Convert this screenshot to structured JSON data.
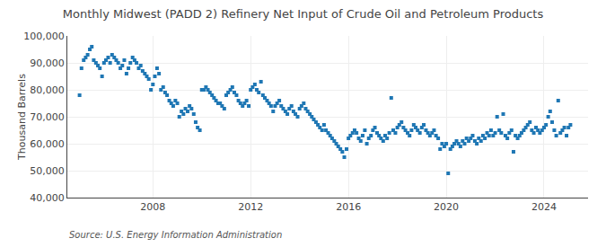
{
  "chart_data": {
    "type": "scatter",
    "title": "Monthly Midwest (PADD 2) Refinery Net Input of Crude Oil and Petroleum Products",
    "ylabel": "Thousand Barrels",
    "annotations": [
      "Source: U.S. Energy Information Administration"
    ],
    "marker": "square",
    "grid": true,
    "xlim": [
      2004.5,
      2025.8
    ],
    "xticks": [
      2008,
      2012,
      2016,
      2020,
      2024
    ],
    "ylim": [
      40000,
      100000
    ],
    "yticks": [
      {
        "value": 40000,
        "label": "40,000"
      },
      {
        "value": 50000,
        "label": "50,000"
      },
      {
        "value": 60000,
        "label": "60,000"
      },
      {
        "value": 70000,
        "label": "70,000"
      },
      {
        "value": 80000,
        "label": "80,000"
      },
      {
        "value": 90000,
        "label": "90,000"
      },
      {
        "value": 100000,
        "label": "100,000"
      }
    ],
    "x": [
      2005.0,
      2005.08,
      2005.17,
      2005.25,
      2005.33,
      2005.42,
      2005.5,
      2005.58,
      2005.67,
      2005.75,
      2005.83,
      2005.92,
      2006.0,
      2006.08,
      2006.17,
      2006.25,
      2006.33,
      2006.42,
      2006.5,
      2006.58,
      2006.67,
      2006.75,
      2006.83,
      2006.92,
      2007.0,
      2007.08,
      2007.17,
      2007.25,
      2007.33,
      2007.42,
      2007.5,
      2007.58,
      2007.67,
      2007.75,
      2007.83,
      2007.92,
      2008.0,
      2008.08,
      2008.17,
      2008.25,
      2008.33,
      2008.42,
      2008.5,
      2008.58,
      2008.67,
      2008.75,
      2008.83,
      2008.92,
      2009.0,
      2009.08,
      2009.17,
      2009.25,
      2009.33,
      2009.42,
      2009.5,
      2009.58,
      2009.67,
      2009.75,
      2009.83,
      2009.92,
      2010.0,
      2010.08,
      2010.17,
      2010.25,
      2010.33,
      2010.42,
      2010.5,
      2010.58,
      2010.67,
      2010.75,
      2010.83,
      2010.92,
      2011.0,
      2011.08,
      2011.17,
      2011.25,
      2011.33,
      2011.42,
      2011.5,
      2011.58,
      2011.67,
      2011.75,
      2011.83,
      2011.92,
      2012.0,
      2012.08,
      2012.17,
      2012.25,
      2012.33,
      2012.42,
      2012.5,
      2012.58,
      2012.67,
      2012.75,
      2012.83,
      2012.92,
      2013.0,
      2013.08,
      2013.17,
      2013.25,
      2013.33,
      2013.42,
      2013.5,
      2013.58,
      2013.67,
      2013.75,
      2013.83,
      2013.92,
      2014.0,
      2014.08,
      2014.17,
      2014.25,
      2014.33,
      2014.42,
      2014.5,
      2014.58,
      2014.67,
      2014.75,
      2014.83,
      2014.92,
      2015.0,
      2015.08,
      2015.17,
      2015.25,
      2015.33,
      2015.42,
      2015.5,
      2015.58,
      2015.67,
      2015.75,
      2015.83,
      2015.92,
      2016.0,
      2016.08,
      2016.17,
      2016.25,
      2016.33,
      2016.42,
      2016.5,
      2016.58,
      2016.67,
      2016.75,
      2016.83,
      2016.92,
      2017.0,
      2017.08,
      2017.17,
      2017.25,
      2017.33,
      2017.42,
      2017.5,
      2017.58,
      2017.67,
      2017.75,
      2017.83,
      2017.92,
      2018.0,
      2018.08,
      2018.17,
      2018.25,
      2018.33,
      2018.42,
      2018.5,
      2018.58,
      2018.67,
      2018.75,
      2018.83,
      2018.92,
      2019.0,
      2019.08,
      2019.17,
      2019.25,
      2019.33,
      2019.42,
      2019.5,
      2019.58,
      2019.67,
      2019.75,
      2019.83,
      2019.92,
      2020.0,
      2020.08,
      2020.17,
      2020.25,
      2020.33,
      2020.42,
      2020.5,
      2020.58,
      2020.67,
      2020.75,
      2020.83,
      2020.92,
      2021.0,
      2021.08,
      2021.17,
      2021.25,
      2021.33,
      2021.42,
      2021.5,
      2021.58,
      2021.67,
      2021.75,
      2021.83,
      2021.92,
      2022.0,
      2022.08,
      2022.17,
      2022.25,
      2022.33,
      2022.42,
      2022.5,
      2022.58,
      2022.67,
      2022.75,
      2022.83,
      2022.92,
      2023.0,
      2023.08,
      2023.17,
      2023.25,
      2023.33,
      2023.42,
      2023.5,
      2023.58,
      2023.67,
      2023.75,
      2023.83,
      2023.92,
      2024.0,
      2024.08,
      2024.17,
      2024.25,
      2024.33,
      2024.42,
      2024.5,
      2024.58,
      2024.67,
      2024.75,
      2024.83,
      2024.92,
      2025.0,
      2025.08
    ],
    "values": [
      78000,
      88000,
      91000,
      92000,
      93000,
      95000,
      96000,
      91000,
      90000,
      89000,
      88000,
      85000,
      90000,
      91000,
      92000,
      90000,
      93000,
      92000,
      91000,
      90000,
      88000,
      89000,
      91000,
      86000,
      88000,
      90000,
      92000,
      91000,
      90000,
      88000,
      89000,
      87000,
      86000,
      85000,
      84000,
      80000,
      82000,
      85000,
      88000,
      86000,
      80000,
      81000,
      79000,
      78000,
      76000,
      75000,
      74000,
      76000,
      75000,
      70000,
      72000,
      71000,
      73000,
      72000,
      74000,
      73000,
      71000,
      68000,
      66000,
      65000,
      80000,
      80000,
      81000,
      80000,
      79000,
      78000,
      77000,
      76000,
      75000,
      75000,
      74000,
      73000,
      78000,
      79000,
      80000,
      81000,
      79000,
      78000,
      76000,
      75000,
      74000,
      75000,
      76000,
      74000,
      80000,
      81000,
      82000,
      80000,
      79000,
      83000,
      78000,
      77000,
      76000,
      75000,
      74000,
      72000,
      74000,
      75000,
      76000,
      74000,
      73000,
      72000,
      71000,
      73000,
      74000,
      72000,
      71000,
      70000,
      73000,
      74000,
      75000,
      73000,
      72000,
      71000,
      70000,
      69000,
      68000,
      67000,
      66000,
      65000,
      67000,
      65000,
      64000,
      63000,
      62000,
      61000,
      60000,
      59000,
      58000,
      57000,
      55000,
      58000,
      62000,
      63000,
      64000,
      65000,
      64000,
      62000,
      61000,
      63000,
      65000,
      60000,
      62000,
      63000,
      65000,
      66000,
      64000,
      63000,
      62000,
      61000,
      63000,
      62000,
      64000,
      77000,
      65000,
      64000,
      66000,
      67000,
      68000,
      66000,
      65000,
      64000,
      63000,
      65000,
      67000,
      66000,
      65000,
      64000,
      66000,
      67000,
      65000,
      64000,
      63000,
      64000,
      65000,
      63000,
      62000,
      58000,
      60000,
      59000,
      60000,
      49000,
      58000,
      59000,
      60000,
      61000,
      60000,
      59000,
      61000,
      60000,
      62000,
      61000,
      62000,
      63000,
      61000,
      60000,
      62000,
      61000,
      63000,
      62000,
      64000,
      63000,
      65000,
      63000,
      64000,
      70000,
      65000,
      64000,
      71000,
      63000,
      62000,
      64000,
      65000,
      57000,
      63000,
      62000,
      63000,
      64000,
      65000,
      66000,
      67000,
      68000,
      65000,
      64000,
      66000,
      65000,
      64000,
      65000,
      66000,
      67000,
      70000,
      72000,
      68000,
      65000,
      63000,
      76000,
      64000,
      65000,
      66000,
      63000,
      66000,
      67000
    ]
  }
}
